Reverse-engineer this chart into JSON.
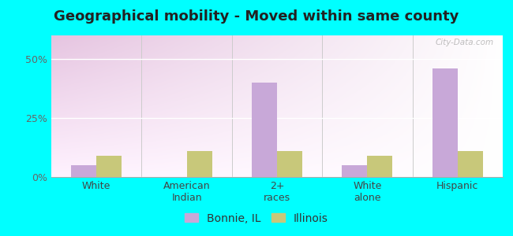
{
  "title": "Geographical mobility - Moved within same county",
  "categories": [
    "White",
    "American\nIndian",
    "2+\nraces",
    "White\nalone",
    "Hispanic"
  ],
  "bonnie_values": [
    5.0,
    0.0,
    40.0,
    5.0,
    46.0
  ],
  "illinois_values": [
    9.0,
    11.0,
    11.0,
    9.0,
    11.0
  ],
  "bonnie_color": "#c8a8d8",
  "illinois_color": "#c8c87a",
  "bar_width": 0.28,
  "ylim": [
    0,
    60
  ],
  "yticks": [
    0,
    25,
    50
  ],
  "ytick_labels": [
    "0%",
    "25%",
    "50%"
  ],
  "bg_topleft": "#c8dcc0",
  "bg_center": "#f0f5ee",
  "bg_right": "#e8f0f8",
  "outer_bg": "#00ffff",
  "legend_labels": [
    "Bonnie, IL",
    "Illinois"
  ],
  "watermark": "City-Data.com",
  "title_fontsize": 13,
  "axis_label_fontsize": 9,
  "legend_fontsize": 10
}
